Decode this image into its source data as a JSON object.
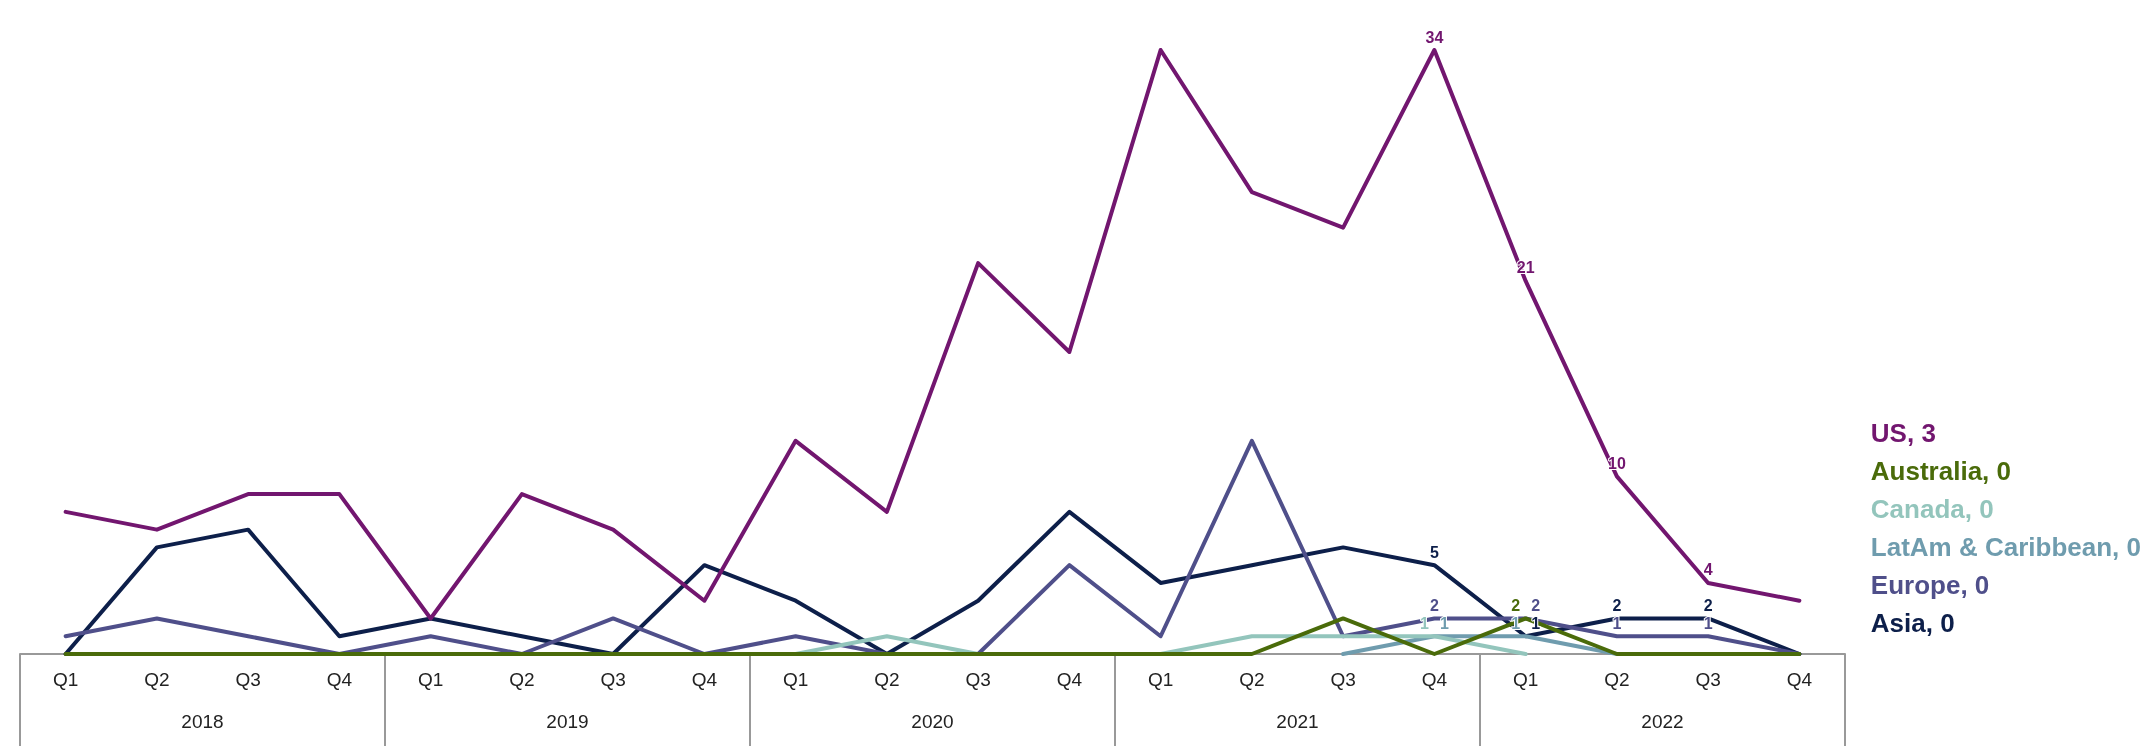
{
  "chart_data": {
    "type": "line",
    "categories": [
      "Q1",
      "Q2",
      "Q3",
      "Q4",
      "Q1",
      "Q2",
      "Q3",
      "Q4",
      "Q1",
      "Q2",
      "Q3",
      "Q4",
      "Q1",
      "Q2",
      "Q3",
      "Q4",
      "Q1",
      "Q2",
      "Q3",
      "Q4"
    ],
    "annotations": [
      "2018",
      "2019",
      "2020",
      "2021",
      "2022"
    ],
    "legend": "right",
    "marker": "none",
    "line_style": "solid",
    "series": [
      {
        "name": "US, 3",
        "color": "#72166f",
        "values": [
          8,
          7,
          9,
          9,
          2,
          9,
          7,
          3,
          12,
          8,
          22,
          17,
          34,
          26,
          24,
          34,
          21,
          10,
          4,
          3
        ],
        "value_labels": [
          null,
          null,
          null,
          null,
          null,
          null,
          null,
          null,
          null,
          null,
          null,
          null,
          null,
          null,
          null,
          "34",
          "21",
          "10",
          "4",
          null
        ]
      },
      {
        "name": "Australia, 0",
        "color": "#4a6b0a",
        "values": [
          0,
          0,
          0,
          0,
          0,
          0,
          0,
          0,
          0,
          0,
          0,
          0,
          0,
          0,
          2,
          0,
          2,
          0,
          0,
          0
        ],
        "value_labels": [
          null,
          null,
          null,
          null,
          null,
          null,
          null,
          null,
          null,
          null,
          null,
          null,
          null,
          null,
          null,
          null,
          "2",
          null,
          null,
          null
        ]
      },
      {
        "name": "Canada, 0",
        "color": "#93c5bc",
        "values": [
          null,
          null,
          null,
          null,
          null,
          null,
          null,
          null,
          0,
          1,
          0,
          null,
          0,
          1,
          1,
          1,
          0,
          null,
          null,
          null
        ],
        "value_labels": [
          null,
          null,
          null,
          null,
          null,
          null,
          null,
          null,
          null,
          null,
          null,
          null,
          null,
          null,
          null,
          "1",
          null,
          null,
          null,
          null
        ]
      },
      {
        "name": "LatAm & Caribbean, 0",
        "color": "#6f9cae",
        "values": [
          null,
          null,
          null,
          null,
          null,
          null,
          null,
          null,
          null,
          null,
          null,
          null,
          null,
          null,
          0,
          1,
          1,
          0,
          null,
          null
        ],
        "value_labels": [
          null,
          null,
          null,
          null,
          null,
          null,
          null,
          null,
          null,
          null,
          null,
          null,
          null,
          null,
          null,
          "1",
          "1",
          null,
          null,
          null
        ]
      },
      {
        "name": "Europe, 0",
        "color": "#4f4f8a",
        "values": [
          1,
          2,
          1,
          0,
          1,
          0,
          2,
          0,
          1,
          0,
          0,
          5,
          1,
          12,
          1,
          2,
          2,
          1,
          1,
          0
        ],
        "value_labels": [
          null,
          null,
          null,
          null,
          null,
          null,
          null,
          null,
          null,
          null,
          null,
          null,
          null,
          null,
          null,
          "2",
          "2",
          "1",
          "1",
          null
        ]
      },
      {
        "name": "Asia, 0",
        "color": "#0d1f4a",
        "values": [
          0,
          6,
          7,
          1,
          2,
          1,
          0,
          5,
          3,
          0,
          3,
          8,
          4,
          5,
          6,
          5,
          1,
          2,
          2,
          0
        ],
        "value_labels": [
          null,
          null,
          null,
          null,
          null,
          null,
          null,
          null,
          null,
          null,
          null,
          null,
          null,
          null,
          null,
          "5",
          "1",
          "2",
          "2",
          null
        ]
      }
    ]
  }
}
